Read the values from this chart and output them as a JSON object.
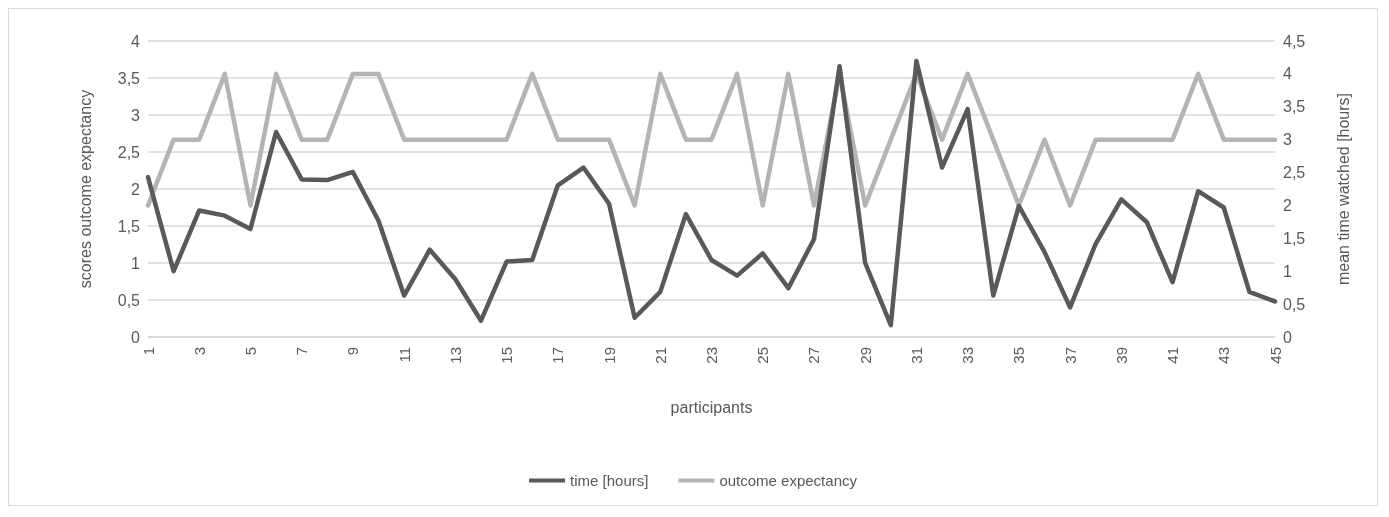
{
  "chart_data": {
    "type": "line",
    "xlabel": "participants",
    "ylabel": "scores outcome expectancy",
    "y2label": "mean time watched [hours]",
    "categories": [
      "1",
      null,
      "3",
      null,
      "5",
      null,
      "7",
      null,
      "9",
      null,
      "11",
      null,
      "13",
      null,
      "15",
      null,
      "17",
      null,
      "19",
      null,
      "21",
      null,
      "23",
      null,
      "25",
      null,
      "27",
      null,
      "29",
      null,
      "31",
      null,
      "33",
      null,
      "35",
      null,
      "37",
      null,
      "39",
      null,
      "41",
      null,
      "43",
      null,
      "45"
    ],
    "series": [
      {
        "name": "time [hours]",
        "color": "#595959",
        "values": [
          2.16,
          0.89,
          1.71,
          1.64,
          1.46,
          2.77,
          2.13,
          2.12,
          2.23,
          1.57,
          0.56,
          1.18,
          0.78,
          0.22,
          1.02,
          1.04,
          2.05,
          2.29,
          1.8,
          0.26,
          0.61,
          1.66,
          1.04,
          0.83,
          1.13,
          0.66,
          1.32,
          3.66,
          1.0,
          0.16,
          3.73,
          2.29,
          3.08,
          0.56,
          1.77,
          1.15,
          0.4,
          1.26,
          1.86,
          1.55,
          0.74,
          1.97,
          1.75,
          0.61,
          0.48
        ]
      },
      {
        "name": "outcome expectancy",
        "color": "#b4b4b4",
        "axis": "y2",
        "values": [
          2,
          3,
          3,
          4,
          2,
          4,
          3,
          3,
          4,
          4,
          3,
          3,
          3,
          3,
          3,
          4,
          3,
          3,
          3,
          2,
          4,
          3,
          3,
          4,
          2,
          4,
          2,
          4,
          2,
          3,
          4,
          3,
          4,
          3,
          2,
          3,
          2,
          3,
          3,
          3,
          3,
          4,
          3,
          3,
          3
        ]
      }
    ],
    "ylim": [
      0,
      4
    ],
    "yticks": [
      0,
      {
        "value": 0.5,
        "label": "0,5"
      },
      1,
      {
        "value": 1.5,
        "label": "1,5"
      },
      2,
      {
        "value": 2.5,
        "label": "2,5"
      },
      3,
      {
        "value": 3.5,
        "label": "3,5"
      },
      4
    ],
    "y2lim": [
      0,
      4.5
    ],
    "y2ticks": [
      0,
      {
        "value": 0.5,
        "label": "0,5"
      },
      1,
      {
        "value": 1.5,
        "label": "1,5"
      },
      2,
      {
        "value": 2.5,
        "label": "2,5"
      },
      3,
      {
        "value": 3.5,
        "label": "3,5"
      },
      4,
      {
        "value": 4.5,
        "label": "4,5"
      }
    ],
    "grid": "y",
    "legend": "bottom",
    "marker": "none",
    "line_style": "solid"
  }
}
